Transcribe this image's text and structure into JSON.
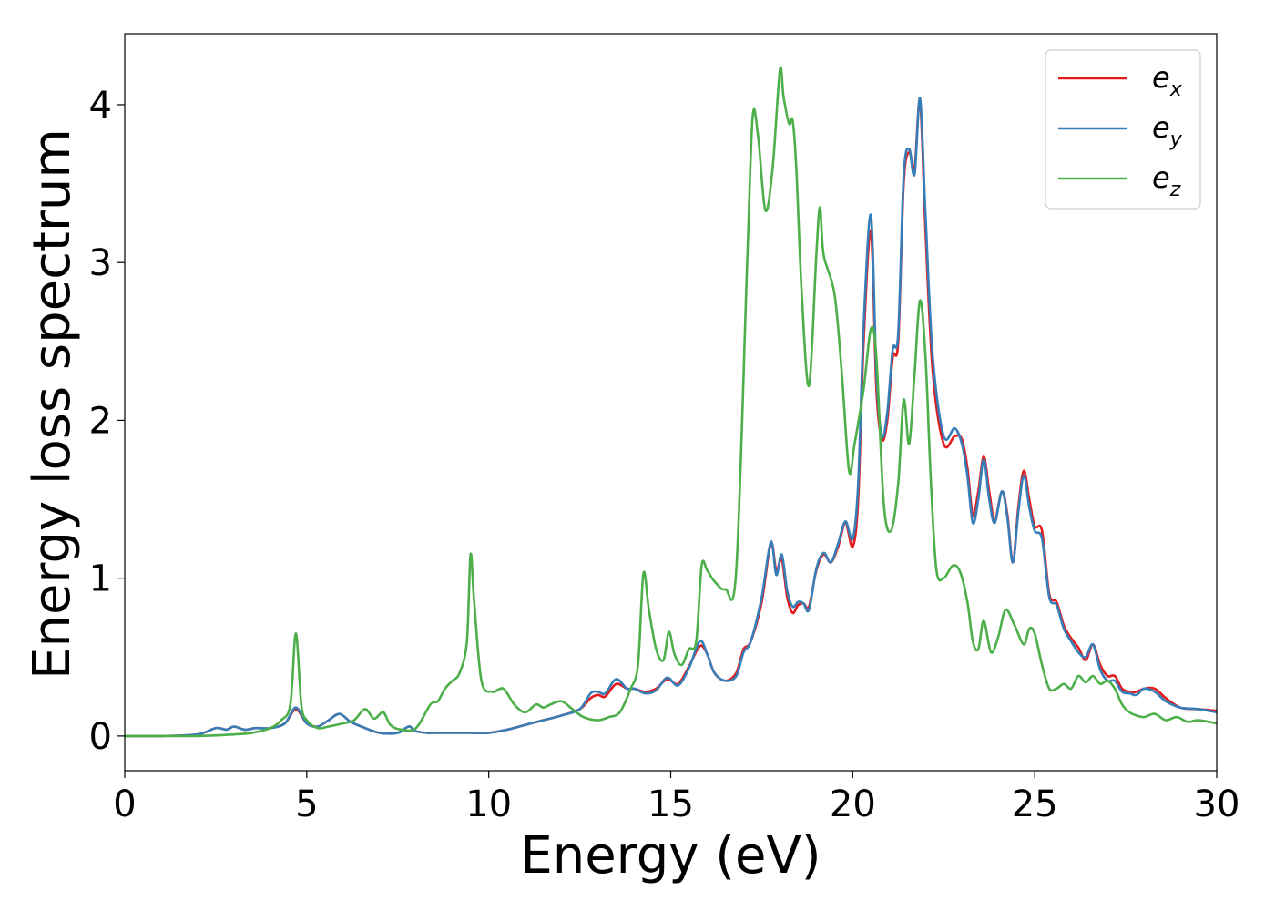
{
  "chart_data": {
    "type": "line",
    "title": "",
    "xlabel": "Energy (eV)",
    "ylabel": "Energy loss spectrum",
    "xlim": [
      0,
      30
    ],
    "ylim": [
      -0.22,
      4.45
    ],
    "xticks": [
      0,
      5,
      10,
      15,
      20,
      25,
      30
    ],
    "xtick_labels": [
      "0",
      "5",
      "10",
      "15",
      "20",
      "25",
      "30"
    ],
    "yticks": [
      0,
      1,
      2,
      3,
      4
    ],
    "ytick_labels": [
      "0",
      "1",
      "2",
      "3",
      "4"
    ],
    "grid": false,
    "legend_position": "top-right",
    "series": [
      {
        "name": "e_x",
        "label_main": "e",
        "label_sub": "x",
        "color": "#e41a1c",
        "x": [
          0,
          1,
          2,
          2.5,
          2.8,
          3,
          3.3,
          3.6,
          4,
          4.4,
          4.7,
          5,
          5.3,
          5.6,
          5.9,
          6.2,
          6.5,
          7,
          7.5,
          7.8,
          8,
          8.3,
          8.6,
          9,
          9.5,
          10,
          10.5,
          11,
          11.5,
          12,
          12.5,
          12.8,
          13,
          13.2,
          13.5,
          13.8,
          14,
          14.3,
          14.6,
          14.9,
          15.2,
          15.5,
          15.8,
          16,
          16.2,
          16.5,
          16.8,
          17,
          17.2,
          17.5,
          17.75,
          17.9,
          18.05,
          18.2,
          18.35,
          18.5,
          18.65,
          18.8,
          19,
          19.2,
          19.4,
          19.6,
          19.8,
          20,
          20.15,
          20.3,
          20.5,
          20.65,
          20.8,
          20.95,
          21.1,
          21.25,
          21.4,
          21.55,
          21.7,
          21.85,
          22,
          22.2,
          22.5,
          22.8,
          23,
          23.15,
          23.3,
          23.45,
          23.6,
          23.75,
          23.9,
          24.1,
          24.25,
          24.4,
          24.55,
          24.7,
          24.85,
          25,
          25.2,
          25.4,
          25.6,
          25.8,
          26,
          26.2,
          26.4,
          26.6,
          26.8,
          27,
          27.2,
          27.4,
          27.6,
          27.8,
          28,
          28.3,
          28.6,
          29,
          29.5,
          30
        ],
        "y": [
          0,
          0,
          0.01,
          0.05,
          0.04,
          0.06,
          0.04,
          0.05,
          0.05,
          0.08,
          0.17,
          0.08,
          0.06,
          0.1,
          0.14,
          0.09,
          0.06,
          0.02,
          0.02,
          0.06,
          0.03,
          0.02,
          0.02,
          0.02,
          0.02,
          0.02,
          0.04,
          0.07,
          0.1,
          0.13,
          0.17,
          0.24,
          0.26,
          0.25,
          0.33,
          0.3,
          0.3,
          0.28,
          0.3,
          0.36,
          0.33,
          0.44,
          0.57,
          0.52,
          0.4,
          0.35,
          0.4,
          0.55,
          0.6,
          0.85,
          1.22,
          1.05,
          1.12,
          0.88,
          0.78,
          0.83,
          0.84,
          0.82,
          1.05,
          1.15,
          1.1,
          1.2,
          1.35,
          1.2,
          1.5,
          2.5,
          3.2,
          2.2,
          1.88,
          2.0,
          2.4,
          2.5,
          3.5,
          3.7,
          3.6,
          4.02,
          3.2,
          2.3,
          1.85,
          1.9,
          1.88,
          1.7,
          1.4,
          1.55,
          1.77,
          1.55,
          1.37,
          1.55,
          1.4,
          1.1,
          1.45,
          1.68,
          1.5,
          1.33,
          1.3,
          0.9,
          0.85,
          0.7,
          0.62,
          0.56,
          0.48,
          0.58,
          0.45,
          0.38,
          0.38,
          0.3,
          0.28,
          0.28,
          0.3,
          0.3,
          0.24,
          0.18,
          0.17,
          0.16
        ]
      },
      {
        "name": "e_y",
        "label_main": "e",
        "label_sub": "y",
        "color": "#377eb8",
        "x": [
          0,
          1,
          2,
          2.5,
          2.8,
          3,
          3.3,
          3.6,
          4,
          4.4,
          4.7,
          5,
          5.3,
          5.6,
          5.9,
          6.2,
          6.5,
          7,
          7.5,
          7.8,
          8,
          8.3,
          8.6,
          9,
          9.5,
          10,
          10.5,
          11,
          11.5,
          12,
          12.5,
          12.8,
          13,
          13.2,
          13.5,
          13.8,
          14,
          14.3,
          14.6,
          14.9,
          15.2,
          15.5,
          15.8,
          16,
          16.2,
          16.5,
          16.8,
          17,
          17.2,
          17.5,
          17.75,
          17.9,
          18.05,
          18.2,
          18.35,
          18.5,
          18.65,
          18.8,
          19,
          19.2,
          19.4,
          19.6,
          19.8,
          20,
          20.15,
          20.3,
          20.5,
          20.65,
          20.8,
          20.95,
          21.1,
          21.25,
          21.4,
          21.55,
          21.7,
          21.85,
          22,
          22.2,
          22.5,
          22.8,
          23,
          23.15,
          23.3,
          23.45,
          23.6,
          23.75,
          23.9,
          24.1,
          24.25,
          24.4,
          24.55,
          24.7,
          24.85,
          25,
          25.2,
          25.4,
          25.6,
          25.8,
          26,
          26.2,
          26.4,
          26.6,
          26.8,
          27,
          27.2,
          27.4,
          27.6,
          27.8,
          28,
          28.3,
          28.6,
          29,
          29.5,
          30
        ],
        "y": [
          0,
          0,
          0.01,
          0.05,
          0.04,
          0.06,
          0.04,
          0.05,
          0.05,
          0.08,
          0.18,
          0.08,
          0.06,
          0.1,
          0.14,
          0.09,
          0.06,
          0.02,
          0.02,
          0.06,
          0.03,
          0.02,
          0.02,
          0.02,
          0.02,
          0.02,
          0.04,
          0.07,
          0.1,
          0.13,
          0.17,
          0.27,
          0.28,
          0.27,
          0.36,
          0.3,
          0.3,
          0.27,
          0.29,
          0.37,
          0.32,
          0.43,
          0.6,
          0.52,
          0.4,
          0.35,
          0.38,
          0.53,
          0.6,
          0.88,
          1.23,
          1.02,
          1.15,
          0.92,
          0.82,
          0.85,
          0.84,
          0.8,
          1.06,
          1.16,
          1.1,
          1.22,
          1.36,
          1.25,
          1.6,
          2.6,
          3.3,
          2.3,
          1.9,
          2.05,
          2.45,
          2.55,
          3.55,
          3.72,
          3.56,
          4.04,
          3.3,
          2.4,
          1.9,
          1.95,
          1.85,
          1.65,
          1.35,
          1.5,
          1.75,
          1.5,
          1.35,
          1.55,
          1.38,
          1.1,
          1.42,
          1.65,
          1.45,
          1.3,
          1.25,
          0.88,
          0.83,
          0.68,
          0.6,
          0.53,
          0.5,
          0.58,
          0.42,
          0.35,
          0.35,
          0.28,
          0.27,
          0.26,
          0.3,
          0.28,
          0.22,
          0.18,
          0.17,
          0.15
        ]
      },
      {
        "name": "e_z",
        "label_main": "e",
        "label_sub": "z",
        "color": "#4daf4a",
        "x": [
          0,
          1,
          2,
          3,
          3.5,
          4,
          4.3,
          4.55,
          4.7,
          4.85,
          5,
          5.3,
          5.6,
          6,
          6.3,
          6.6,
          6.85,
          7.1,
          7.3,
          7.6,
          8,
          8.4,
          8.6,
          8.8,
          9,
          9.2,
          9.4,
          9.5,
          9.6,
          9.8,
          10.1,
          10.4,
          10.7,
          11,
          11.3,
          11.5,
          11.7,
          12,
          12.3,
          12.6,
          13,
          13.3,
          13.6,
          13.9,
          14.1,
          14.25,
          14.4,
          14.6,
          14.8,
          14.95,
          15.1,
          15.3,
          15.5,
          15.7,
          15.85,
          16,
          16.2,
          16.5,
          16.8,
          17.1,
          17.25,
          17.4,
          17.6,
          17.8,
          18.0,
          18.1,
          18.25,
          18.35,
          18.45,
          18.6,
          18.8,
          19.0,
          19.1,
          19.2,
          19.5,
          19.7,
          19.9,
          20.05,
          20.3,
          20.5,
          20.65,
          20.85,
          21.05,
          21.25,
          21.4,
          21.55,
          21.7,
          21.85,
          22.0,
          22.15,
          22.3,
          22.5,
          22.75,
          22.95,
          23.15,
          23.3,
          23.45,
          23.6,
          23.8,
          24.0,
          24.2,
          24.45,
          24.7,
          24.85,
          25.0,
          25.2,
          25.4,
          25.6,
          25.8,
          26.0,
          26.2,
          26.4,
          26.6,
          26.8,
          27.0,
          27.2,
          27.4,
          27.6,
          27.8,
          28.0,
          28.3,
          28.6,
          28.9,
          29.2,
          29.5,
          30
        ],
        "y": [
          0,
          0,
          0,
          0.01,
          0.02,
          0.05,
          0.1,
          0.2,
          0.65,
          0.2,
          0.1,
          0.05,
          0.06,
          0.08,
          0.1,
          0.17,
          0.11,
          0.15,
          0.07,
          0.04,
          0.05,
          0.2,
          0.22,
          0.3,
          0.35,
          0.4,
          0.6,
          1.15,
          0.85,
          0.35,
          0.28,
          0.3,
          0.2,
          0.15,
          0.2,
          0.18,
          0.2,
          0.22,
          0.17,
          0.12,
          0.1,
          0.12,
          0.15,
          0.3,
          0.45,
          1.03,
          0.8,
          0.55,
          0.48,
          0.66,
          0.52,
          0.45,
          0.55,
          0.6,
          1.08,
          1.05,
          0.98,
          0.93,
          1.05,
          3.0,
          3.92,
          3.8,
          3.33,
          3.6,
          4.22,
          4.05,
          3.88,
          3.9,
          3.6,
          2.8,
          2.22,
          3.05,
          3.35,
          3.05,
          2.8,
          2.3,
          1.68,
          1.85,
          2.2,
          2.58,
          2.4,
          1.48,
          1.3,
          1.6,
          2.13,
          1.85,
          2.3,
          2.76,
          2.4,
          1.6,
          1.05,
          1.0,
          1.08,
          1.04,
          0.85,
          0.6,
          0.55,
          0.73,
          0.53,
          0.63,
          0.8,
          0.7,
          0.58,
          0.68,
          0.65,
          0.45,
          0.3,
          0.3,
          0.33,
          0.3,
          0.38,
          0.34,
          0.38,
          0.33,
          0.35,
          0.3,
          0.2,
          0.15,
          0.13,
          0.12,
          0.14,
          0.1,
          0.12,
          0.09,
          0.1,
          0.08
        ]
      }
    ]
  }
}
